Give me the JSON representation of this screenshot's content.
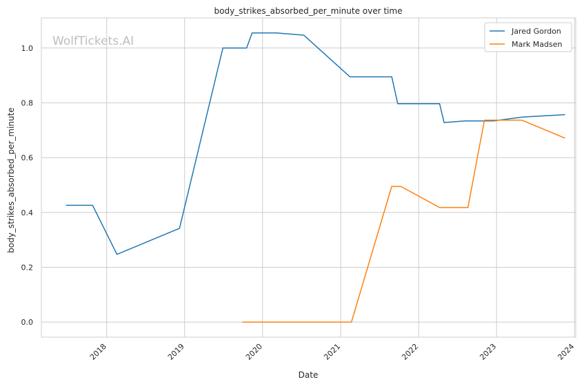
{
  "chart_data": {
    "type": "line",
    "title": "body_strikes_absorbed_per_minute over time",
    "xlabel": "Date",
    "ylabel": "body_strikes_absorbed_per_minute",
    "watermark": "WolfTickets.AI",
    "xlim": [
      "2017-03-01",
      "2024-01-07"
    ],
    "ylim": [
      -0.055,
      1.11
    ],
    "x_ticks": [
      "2018",
      "2019",
      "2020",
      "2021",
      "2022",
      "2023",
      "2024"
    ],
    "y_ticks": [
      "0.0",
      "0.2",
      "0.4",
      "0.6",
      "0.8",
      "1.0"
    ],
    "grid": true,
    "legend_position": "top-right",
    "series": [
      {
        "name": "Jared Gordon",
        "color": "#1f77b4",
        "points": [
          {
            "x": "2017-06-24",
            "y": 0.426
          },
          {
            "x": "2017-10-27",
            "y": 0.426
          },
          {
            "x": "2018-02-18",
            "y": 0.247
          },
          {
            "x": "2018-12-08",
            "y": 0.342
          },
          {
            "x": "2019-06-29",
            "y": 1.0
          },
          {
            "x": "2019-10-18",
            "y": 1.0
          },
          {
            "x": "2019-11-13",
            "y": 1.055
          },
          {
            "x": "2020-03-07",
            "y": 1.055
          },
          {
            "x": "2020-07-12",
            "y": 1.047
          },
          {
            "x": "2021-02-13",
            "y": 0.895
          },
          {
            "x": "2021-08-28",
            "y": 0.895
          },
          {
            "x": "2021-09-25",
            "y": 0.797
          },
          {
            "x": "2022-04-09",
            "y": 0.797
          },
          {
            "x": "2022-04-30",
            "y": 0.728
          },
          {
            "x": "2022-08-06",
            "y": 0.734
          },
          {
            "x": "2022-12-17",
            "y": 0.734
          },
          {
            "x": "2023-04-29",
            "y": 0.748
          },
          {
            "x": "2023-11-18",
            "y": 0.757
          }
        ]
      },
      {
        "name": "Mark Madsen",
        "color": "#ff7f0e",
        "points": [
          {
            "x": "2019-09-28",
            "y": 0.0
          },
          {
            "x": "2021-02-20",
            "y": 0.0
          },
          {
            "x": "2021-08-28",
            "y": 0.495
          },
          {
            "x": "2021-10-09",
            "y": 0.495
          },
          {
            "x": "2022-04-09",
            "y": 0.418
          },
          {
            "x": "2022-08-20",
            "y": 0.418
          },
          {
            "x": "2022-11-05",
            "y": 0.737
          },
          {
            "x": "2023-04-29",
            "y": 0.737
          },
          {
            "x": "2023-11-18",
            "y": 0.671
          }
        ]
      }
    ]
  }
}
